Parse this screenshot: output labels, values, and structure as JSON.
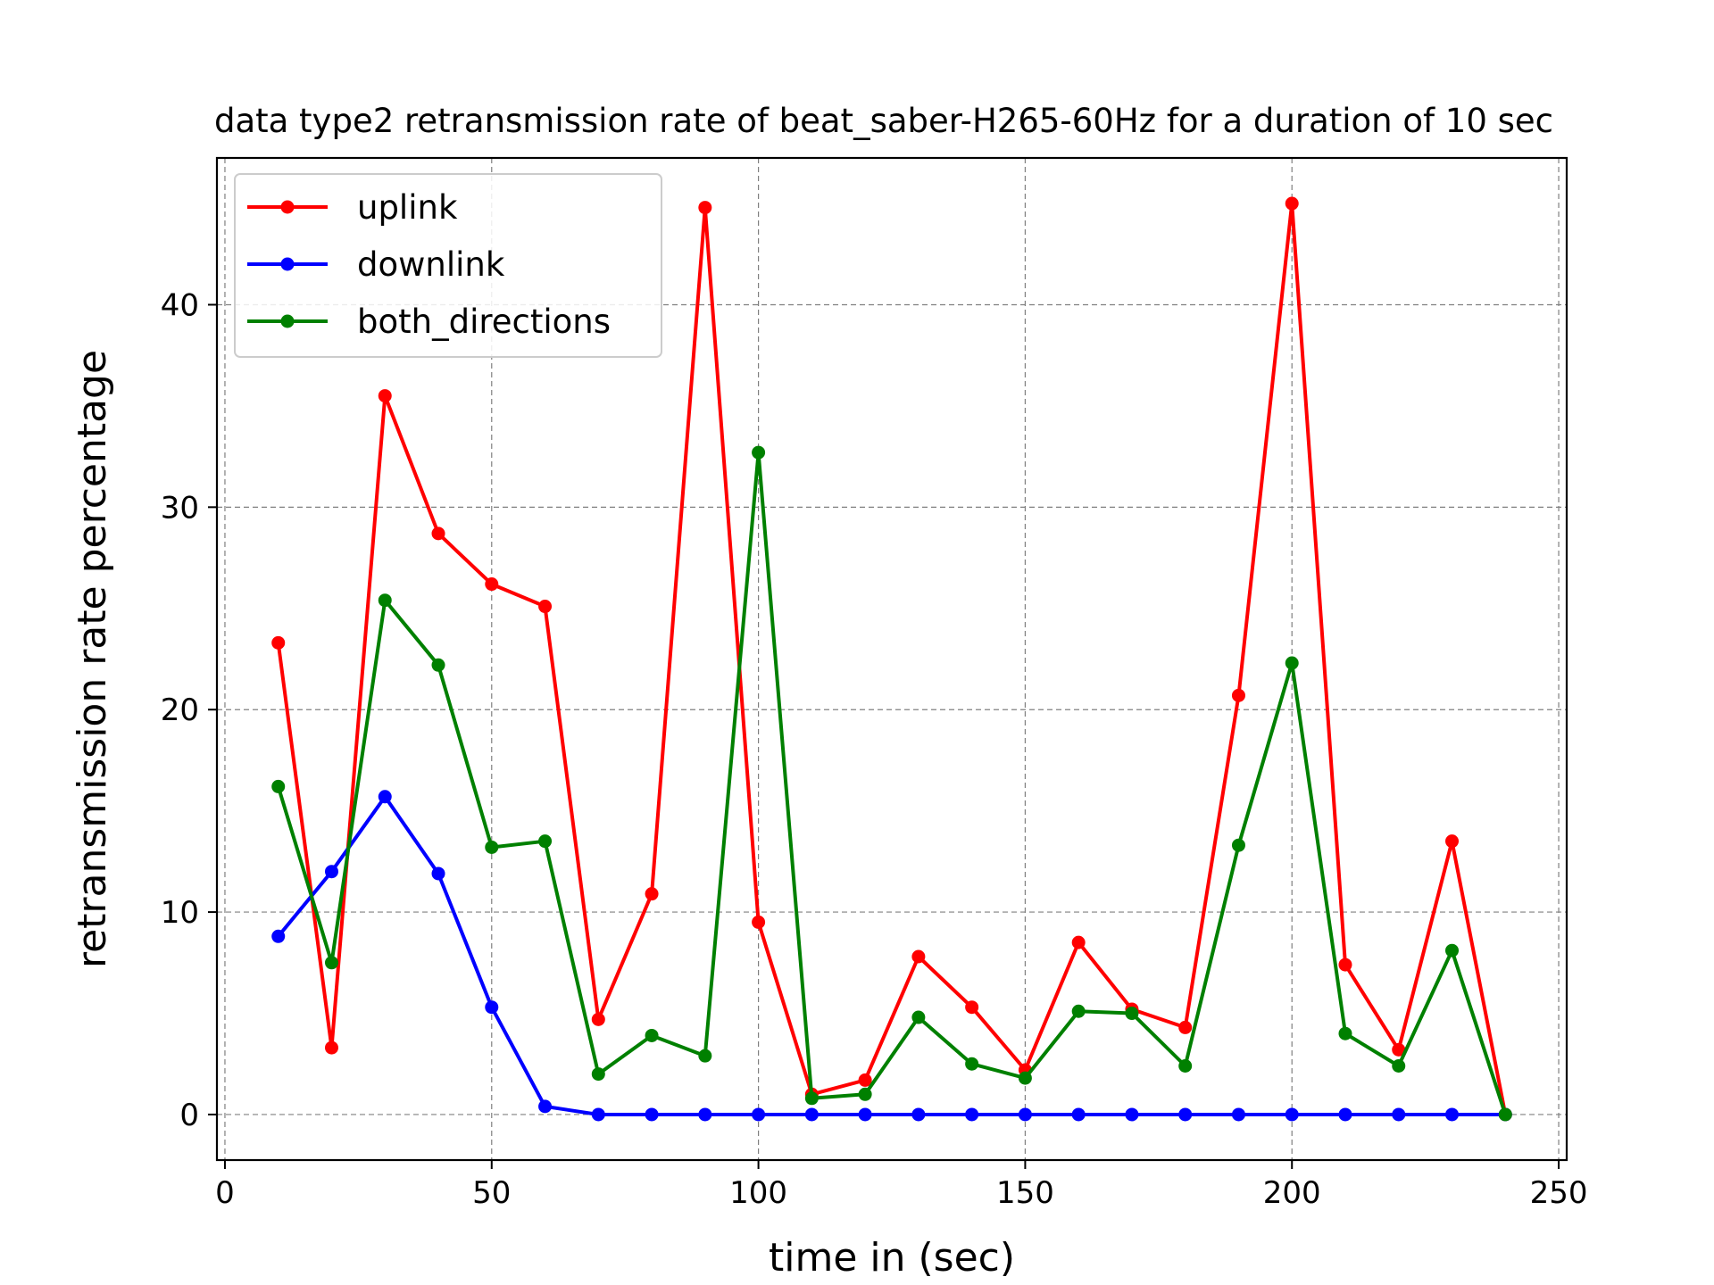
{
  "chart_data": {
    "type": "line",
    "title": "data type2 retransmission rate of beat_saber-H265-60Hz for a duration of 10 sec",
    "xlabel": "time in (sec)",
    "ylabel": "retransmission rate percentage",
    "xlim": [
      -1.5,
      251.5
    ],
    "ylim": [
      -2.25,
      47.25
    ],
    "xticks": [
      0,
      50,
      100,
      150,
      200,
      250
    ],
    "yticks": [
      0,
      10,
      20,
      30,
      40
    ],
    "grid": true,
    "legend_position": "upper-left",
    "x": [
      10,
      20,
      30,
      40,
      50,
      60,
      70,
      80,
      90,
      100,
      110,
      120,
      130,
      140,
      150,
      160,
      170,
      180,
      190,
      200,
      210,
      220,
      230,
      240
    ],
    "series": [
      {
        "name": "uplink",
        "color": "#ff0000",
        "values": [
          23.3,
          3.3,
          35.5,
          28.7,
          26.2,
          25.1,
          4.7,
          10.9,
          44.8,
          9.5,
          1.0,
          1.7,
          7.8,
          5.3,
          2.2,
          8.5,
          5.2,
          4.3,
          20.7,
          45.0,
          7.4,
          3.2,
          13.5,
          0.0
        ]
      },
      {
        "name": "downlink",
        "color": "#0000ff",
        "values": [
          8.8,
          12.0,
          15.7,
          11.9,
          5.3,
          0.4,
          0.0,
          0.0,
          0.0,
          0.0,
          0.0,
          0.0,
          0.0,
          0.0,
          0.0,
          0.0,
          0.0,
          0.0,
          0.0,
          0.0,
          0.0,
          0.0,
          0.0,
          0.0
        ]
      },
      {
        "name": "both_directions",
        "color": "#008000",
        "values": [
          16.2,
          7.5,
          25.4,
          22.2,
          13.2,
          13.5,
          2.0,
          3.9,
          2.9,
          32.7,
          0.8,
          1.0,
          4.8,
          2.5,
          1.8,
          5.1,
          5.0,
          2.4,
          13.3,
          22.3,
          4.0,
          2.4,
          8.1,
          0.0
        ]
      }
    ]
  }
}
